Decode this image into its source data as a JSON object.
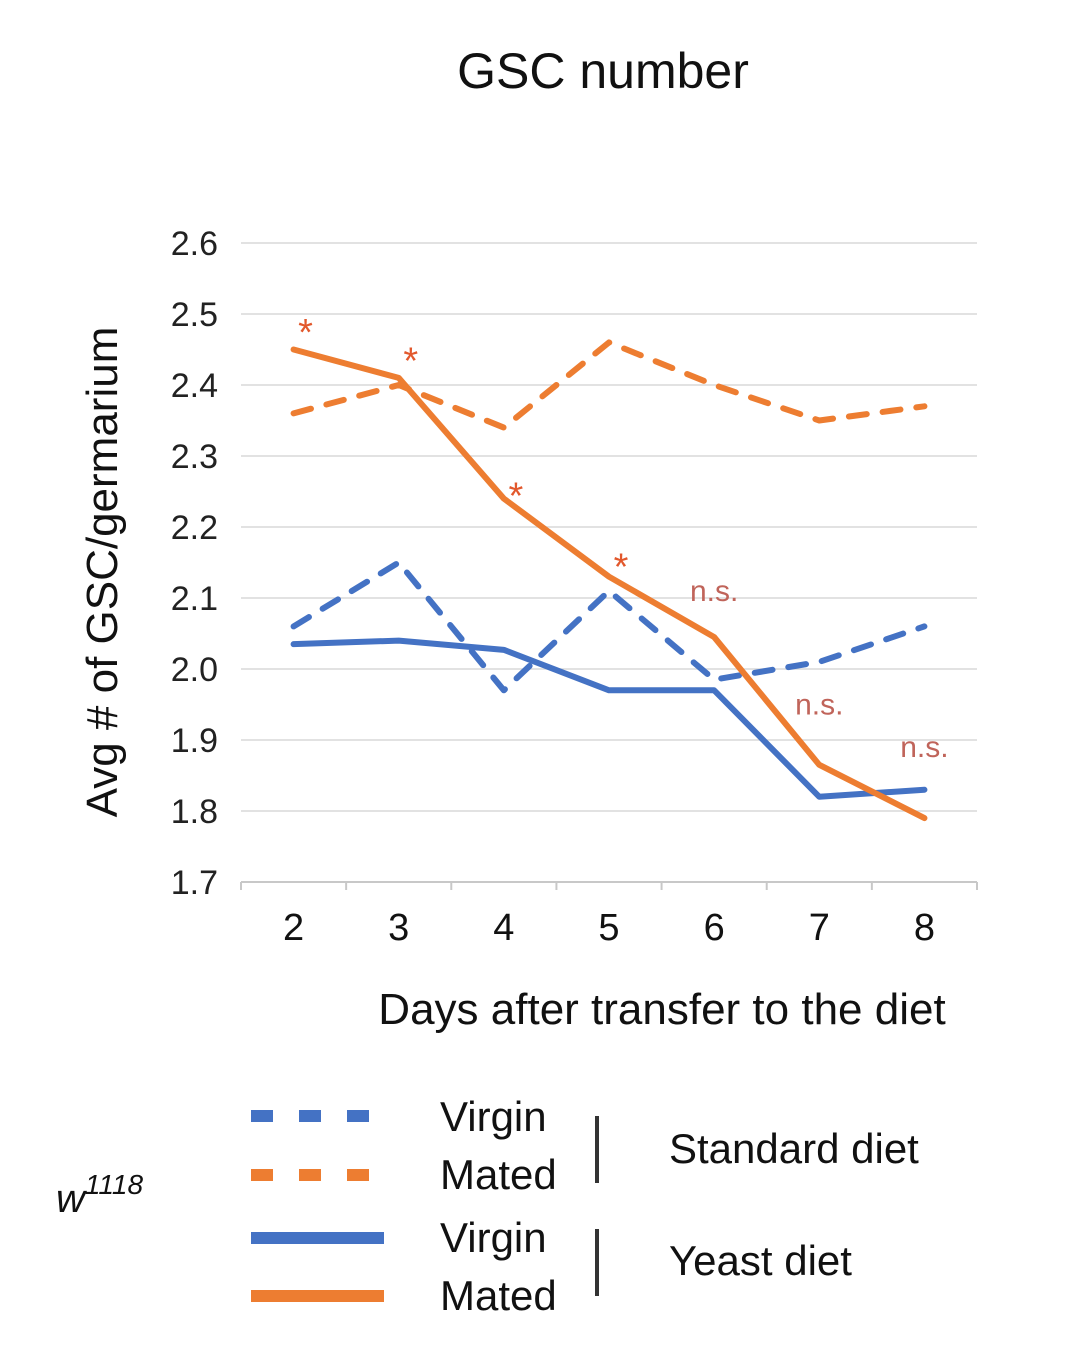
{
  "chart_data": {
    "type": "line",
    "title": "GSC number",
    "xlabel": "Days after transfer to the diet",
    "ylabel": "Avg # of GSC/germarium",
    "categories": [
      "2",
      "3",
      "4",
      "5",
      "6",
      "7",
      "8"
    ],
    "ylim": [
      1.7,
      2.6
    ],
    "yticks": [
      "2.6",
      "2.5",
      "2.4",
      "2.3",
      "2.2",
      "2.1",
      "2.0",
      "1.9",
      "1.8",
      "1.7"
    ],
    "ytick_values": [
      2.6,
      2.5,
      2.4,
      2.3,
      2.2,
      2.1,
      2.0,
      1.9,
      1.8,
      1.7
    ],
    "grid": true,
    "legend_position": "bottom",
    "series": [
      {
        "name": "Virgin - Standard diet",
        "label": "Virgin",
        "diet": "Standard diet",
        "style": "dashed",
        "color": "#4472C4",
        "values": [
          2.06,
          2.15,
          1.97,
          2.11,
          1.985,
          2.01,
          2.06
        ]
      },
      {
        "name": "Mated - Standard diet",
        "label": "Mated",
        "diet": "Standard diet",
        "style": "dashed",
        "color": "#ED7D31",
        "values": [
          2.36,
          2.4,
          2.34,
          2.46,
          2.4,
          2.35,
          2.37
        ]
      },
      {
        "name": "Virgin - Yeast diet",
        "label": "Virgin",
        "diet": "Yeast diet",
        "style": "solid",
        "color": "#4472C4",
        "values": [
          2.035,
          2.04,
          2.027,
          1.97,
          1.97,
          1.82,
          1.83
        ]
      },
      {
        "name": "Mated - Yeast diet",
        "label": "Mated",
        "diet": "Yeast diet",
        "style": "solid",
        "color": "#ED7D31",
        "values": [
          2.45,
          2.41,
          2.24,
          2.13,
          2.045,
          1.865,
          1.79
        ]
      }
    ],
    "annotations": [
      {
        "text": "*",
        "category": "2",
        "y": 2.49,
        "kind": "significant"
      },
      {
        "text": "*",
        "category": "3",
        "y": 2.45,
        "kind": "significant"
      },
      {
        "text": "*",
        "category": "4",
        "y": 2.26,
        "kind": "significant"
      },
      {
        "text": "*",
        "category": "5",
        "y": 2.16,
        "kind": "significant"
      },
      {
        "text": "n.s.",
        "category": "6",
        "y": 2.11,
        "kind": "not-significant"
      },
      {
        "text": "n.s.",
        "category": "7",
        "y": 1.95,
        "kind": "not-significant"
      },
      {
        "text": "n.s.",
        "category": "8",
        "y": 1.89,
        "kind": "not-significant"
      }
    ]
  },
  "legend": {
    "genotype": "w",
    "genotype_superscript": "1118",
    "groups": [
      {
        "diet": "Standard diet",
        "entries": [
          {
            "label": "Virgin",
            "style": "dashed",
            "color": "#4472C4"
          },
          {
            "label": "Mated",
            "style": "dashed",
            "color": "#ED7D31"
          }
        ]
      },
      {
        "diet": "Yeast diet",
        "entries": [
          {
            "label": "Virgin",
            "style": "solid",
            "color": "#4472C4"
          },
          {
            "label": "Mated",
            "style": "solid",
            "color": "#ED7D31"
          }
        ]
      }
    ]
  },
  "colors": {
    "virgin": "#4472C4",
    "mated": "#ED7D31",
    "significance": "#E2582C",
    "not_significant": "#C0645A"
  }
}
